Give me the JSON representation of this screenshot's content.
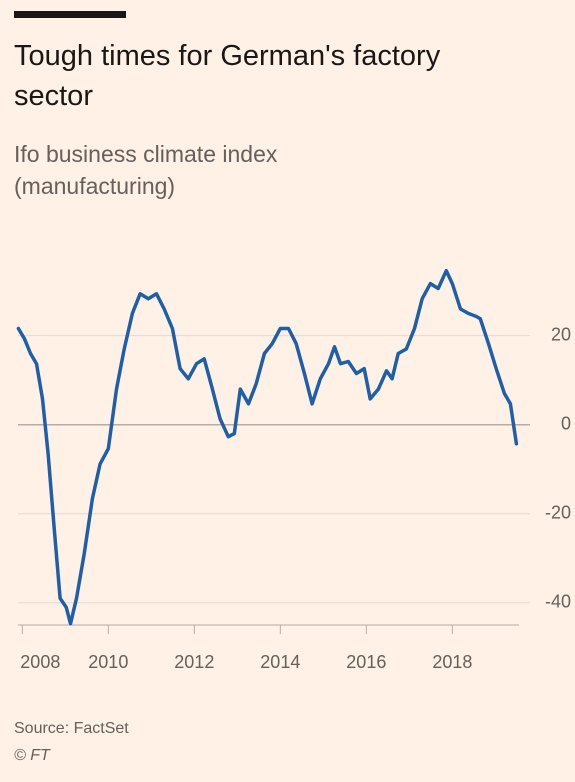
{
  "chart_data": {
    "type": "line",
    "title": "Tough times for German's factory sector",
    "subtitle": "Ifo business climate index (manufacturing)",
    "source": "Source: FactSet",
    "credit": "© FT",
    "x": [
      2007.91,
      2008.05,
      2008.19,
      2008.33,
      2008.47,
      2008.6,
      2008.74,
      2008.88,
      2009.02,
      2009.12,
      2009.26,
      2009.44,
      2009.63,
      2009.81,
      2010.0,
      2010.19,
      2010.37,
      2010.56,
      2010.74,
      2010.93,
      2011.12,
      2011.3,
      2011.49,
      2011.67,
      2011.86,
      2012.05,
      2012.23,
      2012.42,
      2012.6,
      2012.79,
      2012.93,
      2013.07,
      2013.26,
      2013.44,
      2013.63,
      2013.81,
      2014.0,
      2014.19,
      2014.37,
      2014.56,
      2014.74,
      2014.93,
      2015.12,
      2015.26,
      2015.4,
      2015.58,
      2015.77,
      2015.95,
      2016.09,
      2016.28,
      2016.47,
      2016.6,
      2016.74,
      2016.93,
      2017.12,
      2017.3,
      2017.49,
      2017.67,
      2017.86,
      2018.0,
      2018.19,
      2018.37,
      2018.56,
      2018.65,
      2018.84,
      2019.02,
      2019.21,
      2019.35,
      2019.49
    ],
    "series": [
      {
        "name": "Ifo business climate index (manufacturing)",
        "color": "#1f5fa8",
        "values": [
          21.6,
          19.3,
          16,
          13.7,
          5.8,
          -6.5,
          -23,
          -39,
          -41,
          -44.7,
          -39,
          -29,
          -16.6,
          -8.8,
          -5.4,
          8,
          17,
          25,
          29.4,
          28.3,
          29.4,
          26,
          21.6,
          12.6,
          10.3,
          13.7,
          14.8,
          8,
          1.3,
          -2.7,
          -2,
          8,
          4.7,
          9.2,
          16,
          18.2,
          21.6,
          21.6,
          18.2,
          11.5,
          4.7,
          10.3,
          13.7,
          17.5,
          13.7,
          14.2,
          11.5,
          12.6,
          5.8,
          8,
          12.1,
          10.3,
          16,
          17,
          21.6,
          28.3,
          31.7,
          30.6,
          34.6,
          31.7,
          26,
          25,
          24.3,
          23.8,
          18.2,
          12.6,
          7,
          4.7,
          -4.3
        ]
      }
    ],
    "xlim": [
      2007.9,
      2019.55
    ],
    "xticks": [
      2008,
      2010,
      2012,
      2014,
      2016,
      2018
    ],
    "ylim": [
      -45,
      37
    ],
    "yticks": [
      -40,
      -20,
      0,
      20
    ],
    "grid": true
  }
}
